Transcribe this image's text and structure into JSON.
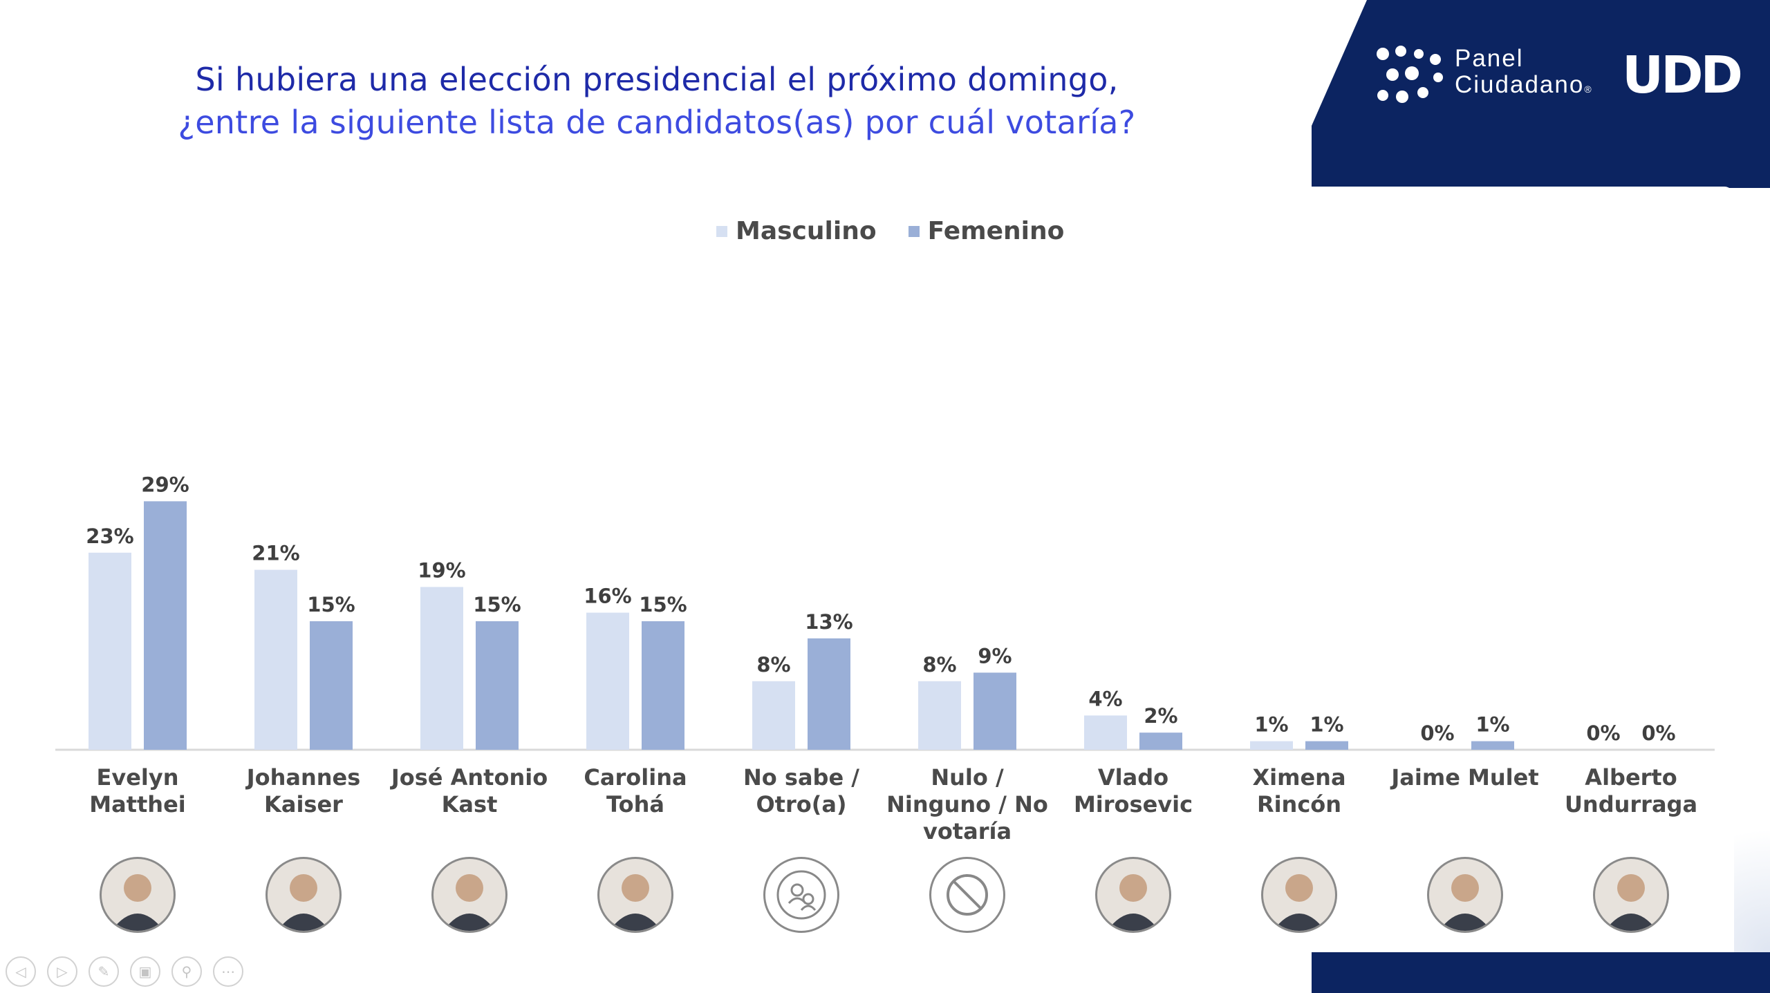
{
  "title": {
    "line1": "Si hubiera una elección presidencial el próximo domingo,",
    "line2": "¿entre la siguiente lista de candidatos(as) por cuál votaría?"
  },
  "branding": {
    "panel_line1": "Panel",
    "panel_line2": "Ciudadano",
    "registered": "®",
    "udd": "UDD"
  },
  "colors": {
    "navy": "#0c2461",
    "masculino": "#d6e0f2",
    "femenino": "#9aafd7",
    "title_line1": "#1e2aa8",
    "title_line2": "#3d4be0"
  },
  "legend": {
    "masculino": "Masculino",
    "femenino": "Femenino"
  },
  "chart_data": {
    "type": "bar",
    "categories": [
      "Evelyn\nMatthei",
      "Johannes\nKaiser",
      "José Antonio\nKast",
      "Carolina Tohá",
      "No sabe /\nOtro(a)",
      "Nulo /\nNinguno / No\nvotaría",
      "Vlado\nMirosevic",
      "Ximena\nRincón",
      "Jaime Mulet",
      "Alberto\nUndurraga"
    ],
    "series": [
      {
        "name": "Masculino",
        "values": [
          23,
          21,
          19,
          16,
          8,
          8,
          4,
          1,
          0,
          0
        ],
        "labels": [
          "23%",
          "21%",
          "19%",
          "16%",
          "8%",
          "8%",
          "4%",
          "1%",
          "0%",
          "0%"
        ]
      },
      {
        "name": "Femenino",
        "values": [
          29,
          15,
          15,
          15,
          13,
          9,
          2,
          1,
          1,
          0
        ],
        "labels": [
          "29%",
          "15%",
          "15%",
          "15%",
          "13%",
          "9%",
          "2%",
          "1%",
          "1%",
          "0%"
        ]
      }
    ],
    "legend_position": "top-center",
    "grid": false
  },
  "avatars": [
    "person",
    "person",
    "person",
    "person",
    "no-sabe-icon",
    "nulo-icon",
    "person",
    "person",
    "person",
    "person"
  ],
  "toolbar": {
    "icons": [
      "previous-icon",
      "next-icon",
      "pen-icon",
      "slides-icon",
      "zoom-icon",
      "more-icon"
    ],
    "glyphs": [
      "◁",
      "▷",
      "✎",
      "▣",
      "⚲",
      "⋯"
    ]
  }
}
